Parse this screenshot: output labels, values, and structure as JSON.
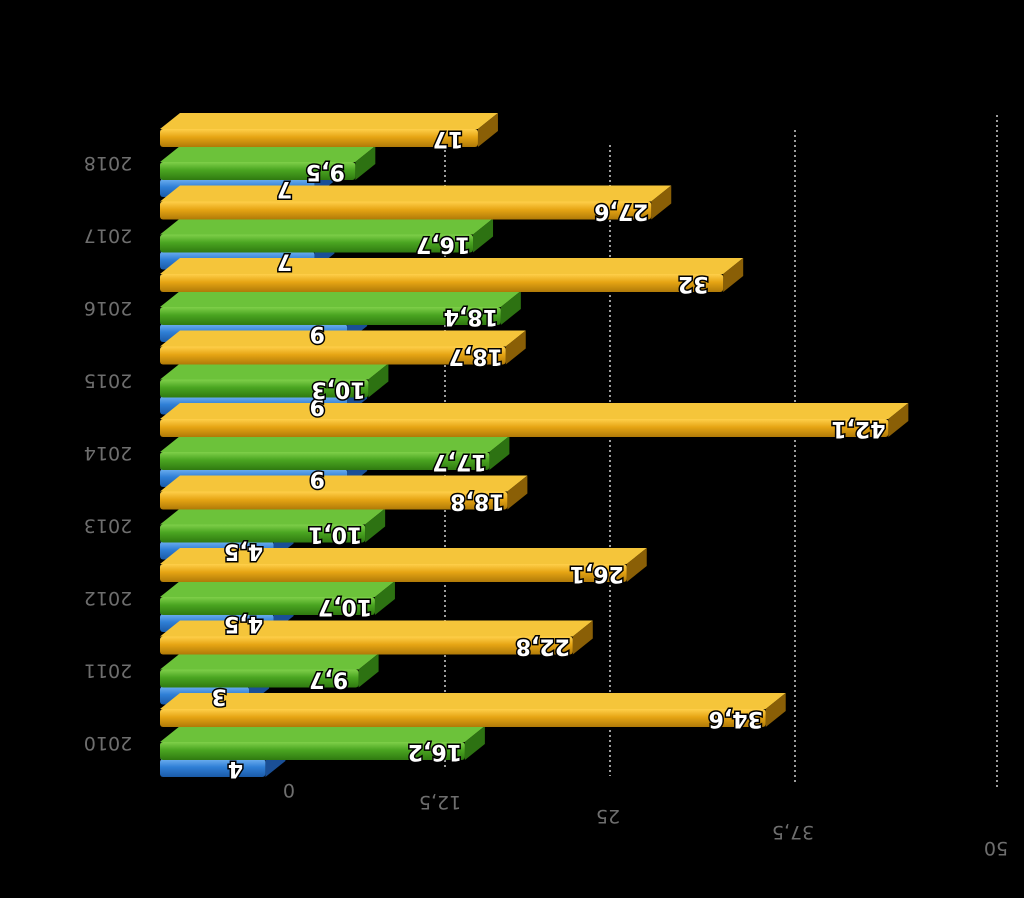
{
  "chart_data": {
    "type": "bar",
    "orientation": "horizontal",
    "rendering": "3d-mirrored",
    "categories": [
      "2010",
      "2011",
      "2012",
      "2013",
      "2014",
      "2015",
      "2016",
      "2017",
      "2018"
    ],
    "series": [
      {
        "values": [
          4,
          3,
          4.5,
          4.5,
          9,
          9,
          9,
          7,
          7
        ]
      },
      {
        "values": [
          16.2,
          9.7,
          10.7,
          10.1,
          17.7,
          10.3,
          18.4,
          16.7,
          9.5
        ]
      },
      {
        "values": [
          34.6,
          22.8,
          26.1,
          18.8,
          42.1,
          18.7,
          32,
          27.6,
          17
        ]
      }
    ],
    "value_labels": [
      [
        "4",
        "3",
        "4,5",
        "4,5",
        "9",
        "9",
        "9",
        "7",
        "7"
      ],
      [
        "16,2",
        "9,7",
        "10,7",
        "10,1",
        "17,7",
        "10,3",
        "18,4",
        "16,7",
        "9,5"
      ],
      [
        "34,6",
        "22,8",
        "26,1",
        "18,8",
        "42,1",
        "18,7",
        "32",
        "27,6",
        "17"
      ]
    ],
    "x_ticks": [
      "0",
      "12,5",
      "25",
      "37,5",
      "50"
    ],
    "xlim": [
      0,
      50
    ],
    "grid": true,
    "legend": "none",
    "colors": [
      "#2f7fd6",
      "#4aa521",
      "#e6a514"
    ],
    "background": "#000000"
  }
}
